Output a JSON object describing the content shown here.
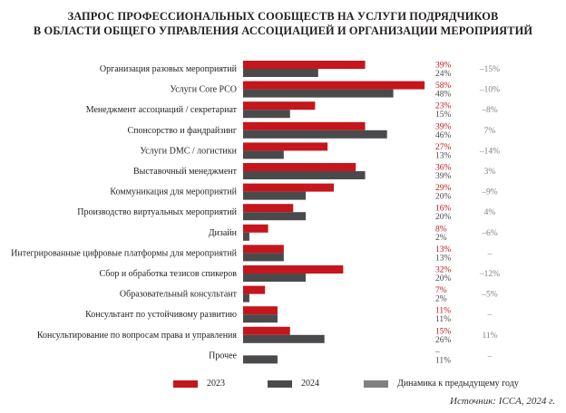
{
  "title_line1": "ЗАПРОС ПРОФЕССИОНАЛЬНЫХ СООБЩЕСТВ НА УСЛУГИ ПОДРЯДЧИКОВ",
  "title_line2": "В ОБЛАСТИ ОБЩЕГО УПРАВЛЕНИЯ АССОЦИАЦИЕЙ И ОРГАНИЗАЦИИ МЕРОПРИЯТИЙ",
  "source": "Источник: ICCA, 2024 г.",
  "legend": {
    "s2023": "2023",
    "s2024": "2024",
    "change": "Динамика к предыдущему году"
  },
  "colors": {
    "s2023": "#c4161c",
    "s2024": "#4a4a4d",
    "change": "#808080",
    "text": "#231f20",
    "pct2023": "#c4161c"
  },
  "chart_data": {
    "type": "bar",
    "orientation": "horizontal",
    "categories": [
      "Организация разовых мероприятий",
      "Услуги Core PCO",
      "Менеджмент ассоциаций / секретариат",
      "Спонсорство и фандрайзинг",
      "Услуги DMC / логистики",
      "Выставочный менеджмент",
      "Коммуникация для мероприятий",
      "Производство виртуальных мероприятий",
      "Дизайн",
      "Интегрированные цифровые платформы для мероприятий",
      "Сбор и обработка тезисов спикеров",
      "Образовательный консультант",
      "Консультант по устойчивому развитию",
      "Консультирование по вопросам права и управления",
      "Прочее"
    ],
    "series": [
      {
        "name": "2023",
        "values": [
          39,
          58,
          23,
          39,
          27,
          36,
          29,
          16,
          8,
          13,
          32,
          7,
          11,
          15,
          null
        ]
      },
      {
        "name": "2024",
        "values": [
          24,
          48,
          15,
          46,
          13,
          39,
          20,
          20,
          2,
          13,
          20,
          2,
          11,
          26,
          11
        ]
      }
    ],
    "labels_2023": [
      "39%",
      "58%",
      "23%",
      "39%",
      "27%",
      "36%",
      "29%",
      "16%",
      "8%",
      "13%",
      "32%",
      "7%",
      "11%",
      "15%",
      "–"
    ],
    "labels_2024": [
      "24%",
      "48%",
      "15%",
      "46%",
      "13%",
      "39%",
      "20%",
      "20%",
      "2%",
      "13%",
      "20%",
      "2%",
      "11%",
      "26%",
      "11%"
    ],
    "change": [
      "–15%",
      "–10%",
      "–8%",
      "7%",
      "–14%",
      "3%",
      "–9%",
      "4%",
      "–6%",
      "–",
      "–12%",
      "–5%",
      "–",
      "11%",
      "–"
    ],
    "xlim": [
      0,
      60
    ],
    "grid": false
  }
}
